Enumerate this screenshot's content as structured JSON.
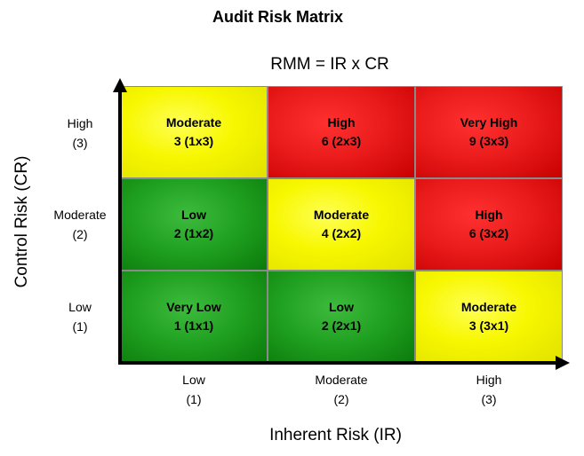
{
  "title": "Audit Risk Matrix",
  "formula": "RMM = IR x CR",
  "y_axis_label": "Control Risk (CR)",
  "x_axis_label": "Inherent Risk (IR)",
  "rows": [
    {
      "label": "High",
      "value": "(3)"
    },
    {
      "label": "Moderate",
      "value": "(2)"
    },
    {
      "label": "Low",
      "value": "(1)"
    }
  ],
  "columns": [
    {
      "label": "Low",
      "value": "(1)"
    },
    {
      "label": "Moderate",
      "value": "(2)"
    },
    {
      "label": "High",
      "value": "(3)"
    }
  ],
  "cells": [
    [
      {
        "level": "Moderate",
        "score": "3 (1x3)",
        "color": "yellow"
      },
      {
        "level": "High",
        "score": "6 (2x3)",
        "color": "red"
      },
      {
        "level": "Very High",
        "score": "9 (3x3)",
        "color": "red"
      }
    ],
    [
      {
        "level": "Low",
        "score": "2 (1x2)",
        "color": "green"
      },
      {
        "level": "Moderate",
        "score": "4 (2x2)",
        "color": "yellow"
      },
      {
        "level": "High",
        "score": "6 (3x2)",
        "color": "red"
      }
    ],
    [
      {
        "level": "Very Low",
        "score": "1 (1x1)",
        "color": "green"
      },
      {
        "level": "Low",
        "score": "2 (2x1)",
        "color": "green"
      },
      {
        "level": "Moderate",
        "score": "3 (3x1)",
        "color": "yellow"
      }
    ]
  ],
  "colors": {
    "yellow": "#f7f700",
    "red": "#e81a1a",
    "green": "#1f9f1f",
    "axis": "#000000"
  }
}
